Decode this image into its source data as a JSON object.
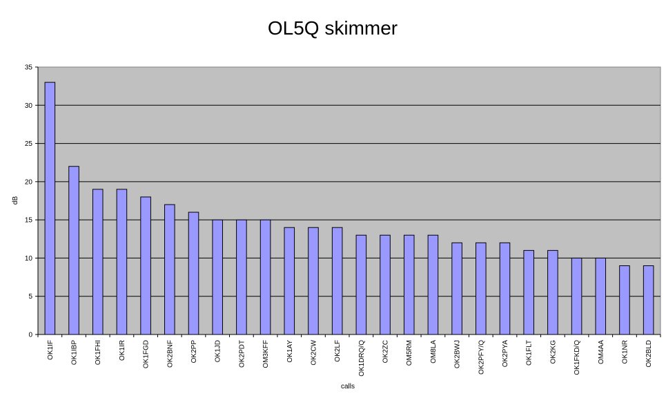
{
  "chart_data": {
    "type": "bar",
    "title": "OL5Q skimmer",
    "xlabel": "calls",
    "ylabel": "dB",
    "ylim": [
      0,
      35
    ],
    "yticks": [
      0,
      5,
      10,
      15,
      20,
      25,
      30,
      35
    ],
    "grid": true,
    "legend": "none",
    "colors": {
      "bar": "#9999ff",
      "plot_bg": "#c0c0c0",
      "gridline": "#000000"
    },
    "categories": [
      "OK1IF",
      "OK1IBP",
      "OK1FHI",
      "OK1IR",
      "OK1FGD",
      "OK2BNF",
      "OK2PP",
      "OK1JD",
      "OK2PDT",
      "OM3KFF",
      "OK1AY",
      "OK2CW",
      "OK2LF",
      "OK1DRQ/Q",
      "OK2ZC",
      "OM5RM",
      "OM8LA",
      "OK2BWJ",
      "OK2PFY/Q",
      "OK2PYA",
      "OK1FLT",
      "OK2KG",
      "OK1FKD/Q",
      "OM4AA",
      "OK1NR",
      "OK2BLD"
    ],
    "values": [
      33,
      22,
      19,
      19,
      18,
      17,
      16,
      15,
      15,
      15,
      14,
      14,
      14,
      13,
      13,
      13,
      13,
      12,
      12,
      12,
      11,
      11,
      10,
      10,
      9,
      9
    ]
  }
}
